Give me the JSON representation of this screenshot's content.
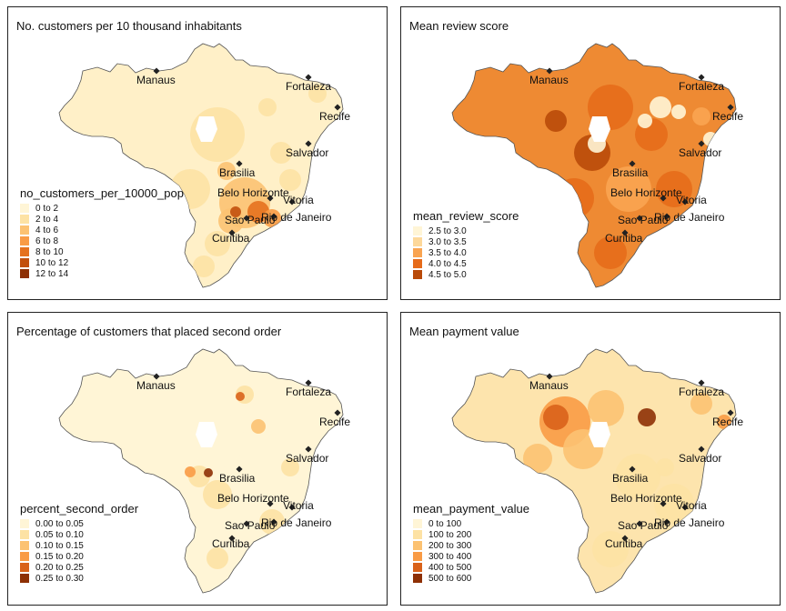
{
  "cities": [
    {
      "name": "Manaus"
    },
    {
      "name": "Fortaleza"
    },
    {
      "name": "Recife"
    },
    {
      "name": "Salvador"
    },
    {
      "name": "Brasilia"
    },
    {
      "name": "Belo Horizonte"
    },
    {
      "name": "Vitoria"
    },
    {
      "name": "Rio de Janeiro"
    },
    {
      "name": "Sao Paulo"
    },
    {
      "name": "Curitiba"
    }
  ],
  "panels": [
    {
      "title": "No. customers per 10 thousand inhabitants",
      "legend_title": "no_customers_per_10000_pop",
      "palette": [
        "#fff5d6",
        "#fde2a4",
        "#fcc272",
        "#f99b45",
        "#e5711e",
        "#c2500d",
        "#8e3005"
      ],
      "legend": [
        "0 to 2",
        "2 to 4",
        "4 to 6",
        "6 to 8",
        "8 to 10",
        "10 to 12",
        "12 to 14"
      ],
      "base_color": "#fff0c8"
    },
    {
      "title": "Mean review score",
      "legend_title": "mean_review_score",
      "palette": [
        "#fff5d6",
        "#fdd89a",
        "#f9a451",
        "#e66b1a",
        "#b94a09"
      ],
      "legend": [
        "2.5 to 3.0",
        "3.0 to 3.5",
        "3.5 to 4.0",
        "4.0 to 4.5",
        "4.5 to 5.0"
      ],
      "base_color": "#ee8a33"
    },
    {
      "title": "Percentage of customers that placed second order",
      "legend_title": "percent_second_order",
      "palette": [
        "#fff5d6",
        "#fde2a4",
        "#fcc272",
        "#f99b45",
        "#d9621a",
        "#8e3005"
      ],
      "legend": [
        "0.00 to 0.05",
        "0.05 to 0.10",
        "0.10 to 0.15",
        "0.15 to 0.20",
        "0.20 to 0.25",
        "0.25 to 0.30"
      ],
      "base_color": "#fff5d6"
    },
    {
      "title": "Mean payment value",
      "legend_title": "mean_payment_value",
      "palette": [
        "#fff5d6",
        "#fde2a4",
        "#fcc272",
        "#f99b45",
        "#d9621a",
        "#8e3005"
      ],
      "legend": [
        "0 to 100",
        "100 to 200",
        "200 to 300",
        "300 to 400",
        "400 to 500",
        "500 to 600"
      ],
      "base_color": "#fde4ad"
    }
  ]
}
